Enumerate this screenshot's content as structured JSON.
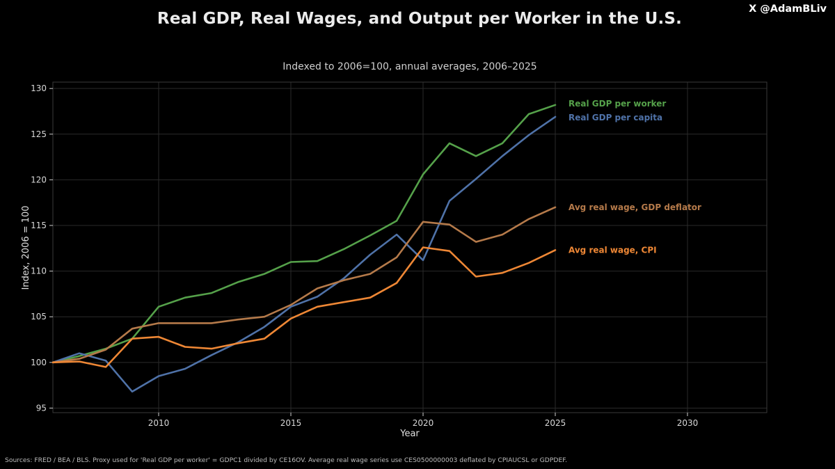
{
  "header": {
    "handle": "X @AdamBLiv"
  },
  "footer": {
    "source": "Sources: FRED / BEA / BLS. Proxy used for 'Real GDP per worker' = GDPC1 divided by CE16OV. Average real wage series use CES0500000003 deflated by CPIAUCSL or GDPDEF."
  },
  "chart_data": {
    "type": "line",
    "title": "Real GDP, Real Wages, and Output per Worker in the U.S.",
    "subtitle": "Indexed to 2006=100, annual averages, 2006–2025",
    "xlabel": "Year",
    "ylabel": "Index, 2006 = 100",
    "xlim": [
      2006,
      2033
    ],
    "ylim": [
      94.5,
      130.7
    ],
    "xticks": [
      2010,
      2015,
      2020,
      2025,
      2030
    ],
    "yticks": [
      95,
      100,
      105,
      110,
      115,
      120,
      125,
      130
    ],
    "grid": true,
    "legend": "direct labels at line ends (right)",
    "x": [
      2006,
      2007,
      2008,
      2009,
      2010,
      2011,
      2012,
      2013,
      2014,
      2015,
      2016,
      2017,
      2018,
      2019,
      2020,
      2021,
      2022,
      2023,
      2024,
      2025
    ],
    "series": [
      {
        "name": "Real GDP per worker",
        "color": "#55a14a",
        "values": [
          100.0,
          100.7,
          101.5,
          102.6,
          106.1,
          107.1,
          107.6,
          108.8,
          109.7,
          111.0,
          111.1,
          112.4,
          113.9,
          115.5,
          120.6,
          124.0,
          122.6,
          124.0,
          127.2,
          128.2
        ]
      },
      {
        "name": "Real GDP per capita",
        "color": "#4f72a8",
        "values": [
          100.0,
          101.0,
          100.2,
          96.8,
          98.5,
          99.3,
          100.8,
          102.2,
          103.9,
          106.1,
          107.2,
          109.2,
          111.8,
          114.0,
          111.2,
          117.7,
          120.1,
          122.6,
          124.9,
          126.9
        ]
      },
      {
        "name": "Avg real wage, GDP deflator",
        "color": "#b57a4a",
        "values": [
          100.0,
          100.4,
          101.4,
          103.7,
          104.3,
          104.3,
          104.3,
          104.7,
          105.0,
          106.3,
          108.1,
          109.0,
          109.7,
          111.5,
          115.4,
          115.1,
          113.2,
          114.0,
          115.7,
          117.0
        ]
      },
      {
        "name": "Avg real wage, CPI",
        "color": "#ee8735",
        "values": [
          100.0,
          100.1,
          99.5,
          102.6,
          102.8,
          101.7,
          101.5,
          102.1,
          102.6,
          104.8,
          106.1,
          106.6,
          107.1,
          108.7,
          112.6,
          112.2,
          109.4,
          109.8,
          110.9,
          112.3
        ]
      }
    ]
  }
}
